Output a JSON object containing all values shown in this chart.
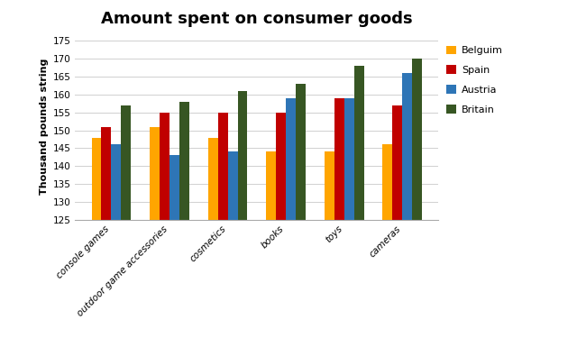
{
  "title": "Amount spent on consumer goods",
  "ylabel": "Thousand pounds string",
  "categories": [
    "console games",
    "outdoor game accessories",
    "cosmetics",
    "books",
    "toys",
    "cameras"
  ],
  "series": {
    "Belguim": [
      148,
      151,
      148,
      144,
      144,
      146
    ],
    "Spain": [
      151,
      155,
      155,
      155,
      159,
      157
    ],
    "Austria": [
      146,
      143,
      144,
      159,
      159,
      166
    ],
    "Britain": [
      157,
      158,
      161,
      163,
      168,
      170
    ]
  },
  "colors": {
    "Belguim": "#FFA500",
    "Spain": "#C00000",
    "Austria": "#2E75B6",
    "Britain": "#375623"
  },
  "ylim": [
    125,
    177
  ],
  "yticks": [
    125,
    130,
    135,
    140,
    145,
    150,
    155,
    160,
    165,
    170,
    175
  ],
  "bar_width": 0.17,
  "legend_fontsize": 8,
  "title_fontsize": 13,
  "axis_label_fontsize": 8,
  "tick_fontsize": 7.5,
  "background_color": "#ffffff"
}
